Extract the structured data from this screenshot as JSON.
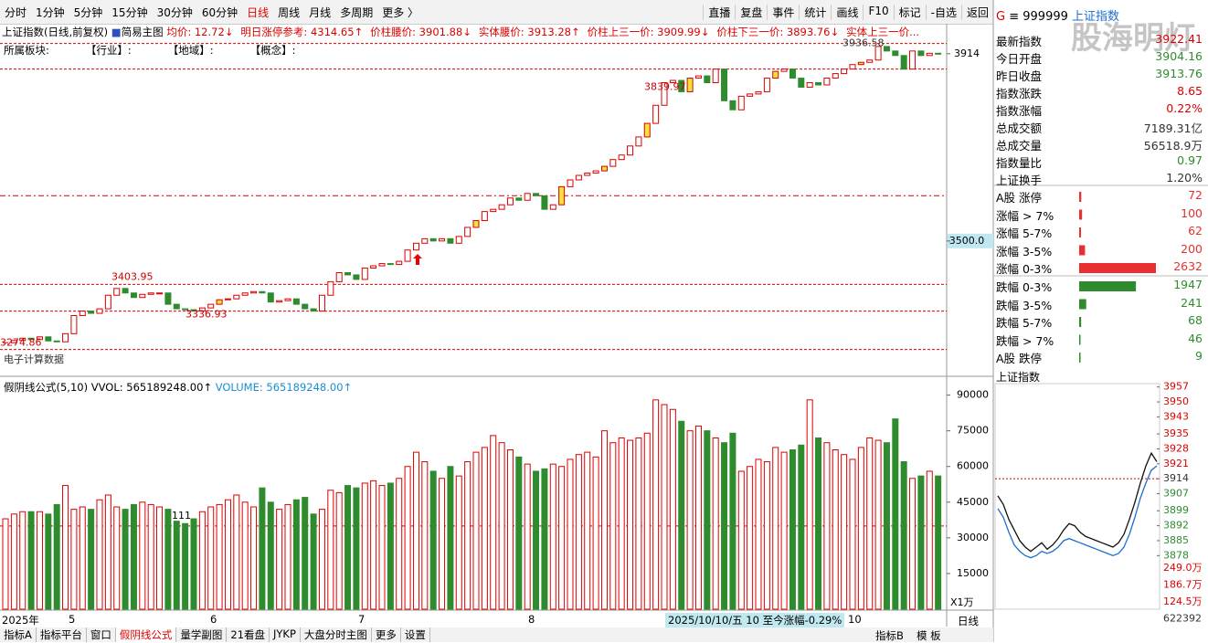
{
  "toolbar": {
    "tabs": [
      "分时",
      "1分钟",
      "5分钟",
      "15分钟",
      "30分钟",
      "60分钟",
      "日线",
      "周线",
      "月线",
      "多周期",
      "更多 〉"
    ],
    "buttons": [
      "直播",
      "复盘",
      "事件",
      "统计",
      "画线",
      "F10",
      "标记",
      "-自选",
      "返回"
    ]
  },
  "info_line": {
    "name": "上证指数(日线,前复权)",
    "mode": "简易主图",
    "items": [
      "均价: 12.72↓",
      "明日涨停参考: 4314.65↑",
      "价柱腰价: 3901.88↓",
      "实体腰价: 3913.28↑",
      "价柱上三一价: 3909.99↓",
      "价柱下三一价: 3893.76↓",
      "实体上三一价..."
    ]
  },
  "sector_line": [
    "所属板块:",
    "【行业】:",
    "【地域】:",
    "【概念】:"
  ],
  "main_chart": {
    "type": "candlestick",
    "ylim": [
      3225,
      3952
    ],
    "yticks": [
      3914,
      {
        "value": 3500,
        "label": "3500.0"
      }
    ],
    "closes": [
      3275,
      3280,
      3285,
      3282,
      3288,
      3279,
      3277,
      3295,
      3335,
      3345,
      3340,
      3350,
      3380,
      3395,
      3385,
      3375,
      3382,
      3385,
      3385,
      3360,
      3350,
      3348,
      3345,
      3352,
      3360,
      3370,
      3372,
      3380,
      3385,
      3388,
      3385,
      3365,
      3368,
      3372,
      3360,
      3350,
      3345,
      3380,
      3410,
      3430,
      3425,
      3415,
      3440,
      3445,
      3450,
      3448,
      3455,
      3480,
      3495,
      3505,
      3500,
      3505,
      3495,
      3510,
      3530,
      3545,
      3565,
      3570,
      3580,
      3595,
      3590,
      3605,
      3600,
      3570,
      3580,
      3620,
      3635,
      3645,
      3650,
      3655,
      3665,
      3680,
      3690,
      3710,
      3730,
      3760,
      3800,
      3850,
      3855,
      3830,
      3860,
      3865,
      3850,
      3880,
      3810,
      3790,
      3820,
      3825,
      3830,
      3860,
      3875,
      3880,
      3860,
      3840,
      3850,
      3845,
      3860,
      3870,
      3880,
      3890,
      3895,
      3900,
      3930,
      3920,
      3910,
      3880,
      3920,
      3910,
      3915,
      3914
    ],
    "levels": [
      3936.58,
      3880,
      3600,
      3403.95,
      3345,
      3260
    ],
    "annotations": [
      {
        "label": "3936.58",
        "value": 3936.58
      },
      {
        "label": "3839.97",
        "value": 3839.97
      },
      {
        "label": "3403.95",
        "value": 3403.95
      },
      {
        "label": "3336.93",
        "value": 3336.93
      },
      {
        "label": "3274.86",
        "value": 3274.86
      }
    ],
    "bottom_note": "电子计算数据"
  },
  "volume_panel": {
    "header": [
      "假阴线公式(5,10)",
      "VVOL: 565189248.00↑",
      "VOLUME: 565189248.00↑"
    ],
    "type": "bar",
    "ylim": [
      0,
      91000
    ],
    "yticks": [
      90000,
      75000,
      60000,
      45000,
      30000,
      15000
    ],
    "unit": "X1万",
    "level": 35000,
    "note": "111",
    "values": [
      38000,
      40000,
      41000,
      41000,
      41000,
      40000,
      44000,
      52000,
      42000,
      43000,
      42000,
      46000,
      48000,
      43000,
      42000,
      44000,
      45000,
      44000,
      43000,
      42000,
      37000,
      36000,
      38000,
      41000,
      43000,
      44000,
      46000,
      48000,
      45000,
      43000,
      51000,
      45000,
      42000,
      44000,
      46000,
      47000,
      40000,
      42000,
      50000,
      49000,
      52000,
      51000,
      53000,
      54000,
      52000,
      53000,
      55000,
      60000,
      66000,
      62000,
      58000,
      55000,
      60000,
      56000,
      62000,
      66000,
      68000,
      73000,
      70000,
      67000,
      64000,
      61000,
      58000,
      59000,
      61000,
      60000,
      63000,
      65000,
      66000,
      64000,
      75000,
      70000,
      72000,
      71000,
      72000,
      74000,
      88000,
      86000,
      84000,
      79000,
      75000,
      77000,
      75000,
      72000,
      70000,
      74000,
      58000,
      60000,
      63000,
      62000,
      68000,
      66000,
      67000,
      69000,
      88000,
      72000,
      70000,
      67000,
      65000,
      63000,
      68000,
      72000,
      71000,
      70000,
      80000,
      62000,
      55000,
      56000,
      58000,
      56000
    ]
  },
  "date_axis": [
    "2025年",
    "5",
    "6",
    "7",
    "8",
    "2025/10/10/五 10 至今涨幅-0.29%",
    "10"
  ],
  "bottom_tabs": [
    "指标A",
    "指标平台",
    "窗口",
    "假阴线公式",
    "量学副图",
    "21看盘",
    "JYKP",
    "大盘分时主图",
    "更多",
    "设置"
  ],
  "bottom_right": [
    "指标B",
    "模 板",
    "日线"
  ],
  "quote": {
    "code": "999999",
    "name": "上证指数",
    "watermark": "股海明灯",
    "rows": [
      [
        "最新指数",
        "3922.41"
      ],
      [
        "今日开盘",
        "3904.16"
      ],
      [
        "昨日收盘",
        "3913.76"
      ],
      [
        "指数涨跌",
        "8.65"
      ],
      [
        "指数涨幅",
        "0.22%"
      ],
      [
        "总成交额",
        "7189.31亿"
      ],
      [
        "总成交量",
        "56518.9万"
      ],
      [
        "指数量比",
        "0.97"
      ],
      [
        "上证换手",
        "1.20%"
      ]
    ],
    "up_stats": {
      "labels": [
        "A股 涨停",
        "涨幅 > 7%",
        "涨幅 5-7%",
        "涨幅 3-5%",
        "涨幅 0-3%"
      ],
      "values": [
        72,
        100,
        62,
        200,
        2632
      ]
    },
    "down_stats": {
      "labels": [
        "跌幅 0-3%",
        "跌幅 3-5%",
        "跌幅 5-7%",
        "跌幅 > 7%",
        "A股 跌停"
      ],
      "values": [
        1947,
        241,
        68,
        46,
        9
      ]
    }
  },
  "mini_chart": {
    "title": "上证指数",
    "type": "line",
    "ylim": [
      3876,
      3959
    ],
    "yticks": [
      3957,
      3950,
      3943,
      3935,
      3928,
      3921,
      3914,
      3907,
      3899,
      3892,
      3885,
      3878
    ],
    "price": [
      3906,
      3902,
      3895,
      3890,
      3885,
      3882,
      3880,
      3882,
      3884,
      3881,
      3883,
      3886,
      3890,
      3893,
      3892,
      3889,
      3887,
      3886,
      3885,
      3884,
      3883,
      3882,
      3884,
      3888,
      3895,
      3903,
      3912,
      3920,
      3926,
      3922
    ],
    "avg": [
      3900,
      3896,
      3889,
      3883,
      3880,
      3878,
      3877,
      3878,
      3880,
      3879,
      3880,
      3882,
      3885,
      3886,
      3885,
      3884,
      3883,
      3882,
      3881,
      3880,
      3879,
      3878,
      3879,
      3882,
      3888,
      3896,
      3905,
      3912,
      3918,
      3920
    ],
    "vol_ticks": [
      "249.0万",
      "186.7万",
      "124.5万",
      "622392"
    ]
  }
}
